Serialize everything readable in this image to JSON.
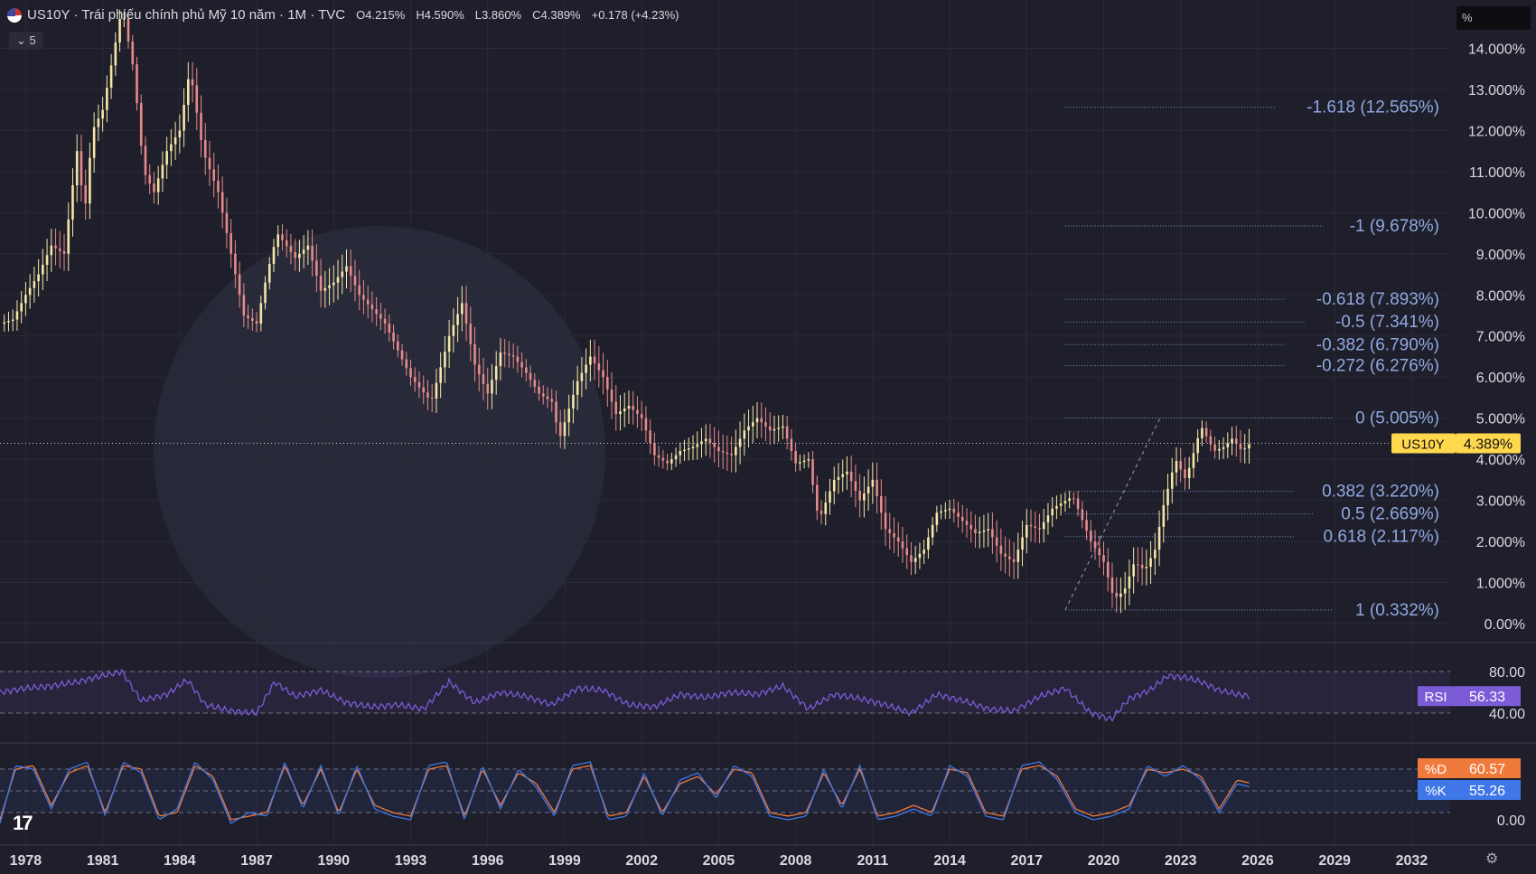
{
  "header": {
    "symbol": "US10Y",
    "title": "US10Y · Trái phiếu chính phủ Mỹ 10 năm · 1M · TVC",
    "ohlc": {
      "open": "O4.215%",
      "high": "H4.590%",
      "low": "L3.860%",
      "close": "C4.389%",
      "change": "+0.178 (+4.23%)"
    },
    "badge": "5"
  },
  "unit_box": "%",
  "colors": {
    "background": "#1f1f2b",
    "candle_up": "#f4e7a6",
    "candle_down": "#e58a8a",
    "fib_line": "#8fa8e0",
    "rsi": "#7b5cd6",
    "stoch_k": "#3f77e8",
    "stoch_d": "#f07a3c",
    "last_price": "#ffd84d"
  },
  "chart_data": [
    {
      "type": "candlestick",
      "title": "US10Y · Trái phiếu chính phủ Mỹ 10 năm · 1M · TVC",
      "ylim": [
        0,
        15
      ],
      "y_ticks": [
        "0.00%",
        "1.000%",
        "2.000%",
        "3.000%",
        "4.000%",
        "5.000%",
        "6.000%",
        "7.000%",
        "8.000%",
        "9.000%",
        "10.000%",
        "11.000%",
        "12.000%",
        "13.000%",
        "14.000%"
      ],
      "x_ticks": [
        "1978",
        "1981",
        "1984",
        "1987",
        "1990",
        "1993",
        "1996",
        "1999",
        "2002",
        "2005",
        "2008",
        "2011",
        "2014",
        "2017",
        "2020",
        "2023",
        "2026",
        "2029",
        "2032"
      ],
      "xlim": [
        1977,
        2033.5
      ],
      "last_price_label": "US10Y",
      "last_price": "4.389%",
      "series": [
        {
          "x": [
            1977.0,
            1977.5,
            1978.0,
            1978.5,
            1979.0,
            1979.5,
            1980.0,
            1980.3,
            1980.6,
            1981.0,
            1981.4,
            1981.75,
            1982.2,
            1982.6,
            1983.0,
            1983.5,
            1984.0,
            1984.4,
            1984.9,
            1985.5,
            1986.0,
            1986.5,
            1987.0,
            1987.4,
            1987.8,
            1988.5,
            1989.0,
            1989.5,
            1990.0,
            1990.5,
            1991.0,
            1992.0,
            1993.0,
            1993.8,
            1994.5,
            1995.0,
            1995.5,
            1996.0,
            1996.5,
            1997.0,
            1997.5,
            1998.0,
            1998.5,
            1998.8,
            1999.5,
            2000.0,
            2000.5,
            2001.0,
            2001.5,
            2002.0,
            2002.5,
            2003.0,
            2003.5,
            2004.0,
            2004.5,
            2005.0,
            2005.5,
            2006.0,
            2006.5,
            2007.0,
            2007.5,
            2008.0,
            2008.5,
            2008.9,
            2009.5,
            2010.0,
            2010.5,
            2011.0,
            2011.5,
            2012.0,
            2012.5,
            2013.0,
            2013.5,
            2014.0,
            2014.5,
            2015.0,
            2015.5,
            2016.0,
            2016.5,
            2017.0,
            2017.5,
            2018.0,
            2018.8,
            2019.5,
            2020.0,
            2020.4,
            2020.8,
            2021.2,
            2021.6,
            2022.0,
            2022.3,
            2022.8,
            2023.2,
            2023.8,
            2024.3,
            2024.7,
            2025.0,
            2025.4,
            2025.7
          ],
          "close": [
            7.3,
            7.4,
            8.0,
            8.5,
            9.2,
            9.0,
            11.5,
            10.0,
            12.0,
            12.5,
            13.8,
            15.0,
            13.5,
            11.0,
            10.5,
            11.5,
            12.0,
            13.5,
            11.5,
            10.5,
            9.0,
            7.5,
            7.3,
            8.5,
            9.5,
            8.9,
            9.2,
            8.1,
            8.3,
            8.7,
            8.0,
            7.3,
            6.0,
            5.4,
            7.0,
            7.8,
            6.3,
            5.6,
            6.6,
            6.5,
            6.1,
            5.6,
            5.4,
            4.5,
            5.9,
            6.5,
            6.0,
            5.1,
            5.3,
            5.0,
            4.1,
            3.9,
            4.2,
            4.3,
            4.5,
            4.2,
            4.1,
            4.7,
            5.0,
            4.7,
            4.8,
            3.9,
            4.0,
            2.5,
            3.5,
            3.7,
            3.0,
            3.5,
            2.3,
            2.0,
            1.5,
            1.8,
            2.7,
            2.8,
            2.5,
            2.2,
            2.3,
            1.7,
            1.5,
            2.4,
            2.3,
            2.8,
            3.1,
            2.0,
            1.5,
            0.6,
            0.8,
            1.5,
            1.3,
            1.8,
            2.8,
            4.0,
            3.5,
            4.8,
            4.2,
            4.3,
            4.5,
            4.2,
            4.389
          ]
        }
      ],
      "fibonacci": {
        "levels": [
          {
            "label": "-1.618 (12.565%)",
            "value": 12.565
          },
          {
            "label": "-1 (9.678%)",
            "value": 9.678
          },
          {
            "label": "-0.618 (7.893%)",
            "value": 7.893
          },
          {
            "label": "-0.5 (7.341%)",
            "value": 7.341
          },
          {
            "label": "-0.382 (6.790%)",
            "value": 6.79
          },
          {
            "label": "-0.272 (6.276%)",
            "value": 6.276
          },
          {
            "label": "0 (5.005%)",
            "value": 5.005
          },
          {
            "label": "0.382 (3.220%)",
            "value": 3.22
          },
          {
            "label": "0.5 (2.669%)",
            "value": 2.669
          },
          {
            "label": "0.618 (2.117%)",
            "value": 2.117
          },
          {
            "label": "1 (0.332%)",
            "value": 0.332
          }
        ],
        "from": {
          "x": 2018.5,
          "y": 0.332
        },
        "to": {
          "x": 2022.2,
          "y": 5.005
        }
      }
    },
    {
      "type": "line",
      "indicator": "RSI",
      "value_label": "56.33",
      "bands": [
        40,
        80
      ],
      "y_ticks": [
        "80.00",
        "40.00"
      ],
      "ylim": [
        20,
        100
      ],
      "series": [
        {
          "name": "RSI",
          "x": [
            1977.0,
            1978.0,
            1979.0,
            1980.0,
            1981.0,
            1981.75,
            1982.5,
            1983.5,
            1984.3,
            1985.0,
            1986.0,
            1987.0,
            1987.7,
            1988.5,
            1989.5,
            1990.5,
            1991.5,
            1992.5,
            1993.5,
            1994.5,
            1995.5,
            1996.5,
            1997.5,
            1998.5,
            1999.5,
            2000.5,
            2001.5,
            2002.5,
            2003.5,
            2004.5,
            2005.5,
            2006.5,
            2007.5,
            2008.5,
            2009.5,
            2010.5,
            2011.5,
            2012.5,
            2013.5,
            2014.5,
            2015.5,
            2016.5,
            2017.5,
            2018.5,
            2019.5,
            2020.3,
            2021.0,
            2021.8,
            2022.5,
            2023.2,
            2023.8,
            2024.5,
            2025.2,
            2025.7
          ],
          "values": [
            60,
            64,
            66,
            70,
            76,
            80,
            52,
            58,
            72,
            48,
            42,
            40,
            70,
            56,
            62,
            50,
            46,
            48,
            44,
            70,
            50,
            60,
            56,
            48,
            64,
            62,
            48,
            46,
            58,
            55,
            60,
            58,
            66,
            44,
            58,
            54,
            48,
            40,
            58,
            52,
            44,
            42,
            56,
            64,
            40,
            34,
            54,
            62,
            76,
            74,
            70,
            62,
            58,
            56.33
          ]
        }
      ]
    },
    {
      "type": "line",
      "indicator": "Stochastic",
      "y_ticks": [
        "0.00"
      ],
      "ylim": [
        0,
        100
      ],
      "series": [
        {
          "name": "%D",
          "value_label": "60.57",
          "x": [
            1977.0,
            1977.6,
            1978.3,
            1979.0,
            1979.7,
            1980.4,
            1981.1,
            1981.8,
            1982.5,
            1983.2,
            1983.9,
            1984.6,
            1985.3,
            1986.0,
            1986.7,
            1987.4,
            1988.1,
            1988.8,
            1989.5,
            1990.2,
            1990.9,
            1991.6,
            1992.3,
            1993.0,
            1993.7,
            1994.4,
            1995.1,
            1995.8,
            1996.5,
            1997.2,
            1997.9,
            1998.6,
            1999.3,
            2000.0,
            2000.7,
            2001.4,
            2002.1,
            2002.8,
            2003.5,
            2004.2,
            2004.9,
            2005.6,
            2006.3,
            2007.0,
            2007.7,
            2008.4,
            2009.1,
            2009.8,
            2010.5,
            2011.2,
            2011.9,
            2012.6,
            2013.3,
            2014.0,
            2014.7,
            2015.4,
            2016.1,
            2016.8,
            2017.5,
            2018.2,
            2018.9,
            2019.6,
            2020.3,
            2021.0,
            2021.7,
            2022.4,
            2023.1,
            2023.8,
            2024.5,
            2025.2,
            2025.7
          ],
          "values": [
            10,
            80,
            85,
            30,
            75,
            85,
            20,
            85,
            80,
            15,
            20,
            85,
            70,
            10,
            15,
            20,
            85,
            30,
            80,
            20,
            80,
            30,
            20,
            15,
            80,
            85,
            15,
            80,
            30,
            75,
            60,
            20,
            80,
            85,
            15,
            20,
            70,
            20,
            60,
            70,
            45,
            80,
            75,
            20,
            15,
            20,
            75,
            30,
            80,
            15,
            20,
            30,
            20,
            80,
            75,
            20,
            15,
            80,
            85,
            70,
            25,
            15,
            20,
            30,
            80,
            75,
            80,
            70,
            25,
            65,
            60.57
          ]
        },
        {
          "name": "%K",
          "value_label": "55.26",
          "x": [
            1977.0,
            1977.6,
            1978.3,
            1979.0,
            1979.7,
            1980.4,
            1981.1,
            1981.8,
            1982.5,
            1983.2,
            1983.9,
            1984.6,
            1985.3,
            1986.0,
            1986.7,
            1987.4,
            1988.1,
            1988.8,
            1989.5,
            1990.2,
            1990.9,
            1991.6,
            1992.3,
            1993.0,
            1993.7,
            1994.4,
            1995.1,
            1995.8,
            1996.5,
            1997.2,
            1997.9,
            1998.6,
            1999.3,
            2000.0,
            2000.7,
            2001.4,
            2002.1,
            2002.8,
            2003.5,
            2004.2,
            2004.9,
            2005.6,
            2006.3,
            2007.0,
            2007.7,
            2008.4,
            2009.1,
            2009.8,
            2010.5,
            2011.2,
            2011.9,
            2012.6,
            2013.3,
            2014.0,
            2014.7,
            2015.4,
            2016.1,
            2016.8,
            2017.5,
            2018.2,
            2018.9,
            2019.6,
            2020.3,
            2021.0,
            2021.7,
            2022.4,
            2023.1,
            2023.8,
            2024.5,
            2025.2,
            2025.7
          ],
          "values": [
            5,
            85,
            80,
            25,
            80,
            90,
            15,
            90,
            75,
            10,
            25,
            90,
            65,
            5,
            20,
            15,
            90,
            25,
            85,
            15,
            85,
            25,
            15,
            10,
            85,
            90,
            10,
            85,
            25,
            80,
            55,
            15,
            85,
            90,
            10,
            15,
            75,
            15,
            65,
            75,
            40,
            85,
            70,
            15,
            10,
            15,
            80,
            25,
            85,
            10,
            15,
            25,
            15,
            85,
            70,
            15,
            10,
            85,
            90,
            65,
            20,
            10,
            15,
            25,
            85,
            70,
            85,
            65,
            20,
            60,
            55.26
          ]
        }
      ]
    }
  ]
}
